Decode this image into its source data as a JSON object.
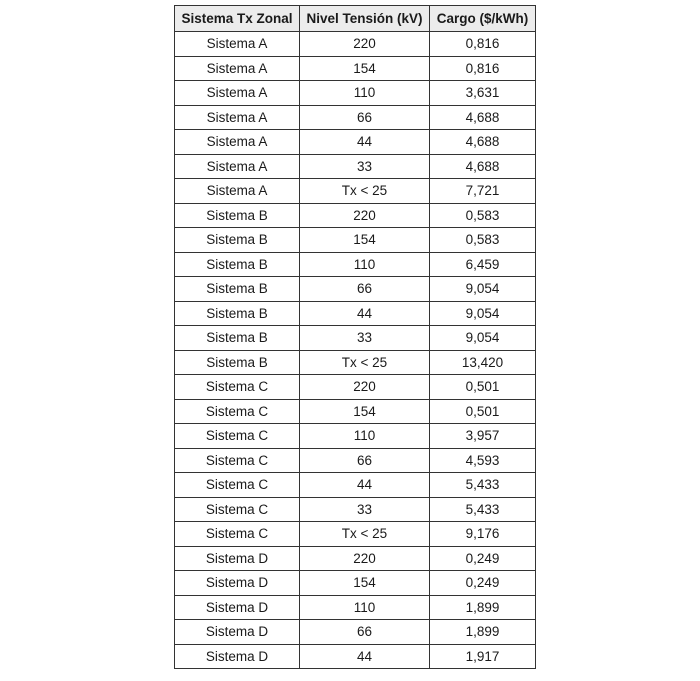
{
  "table": {
    "headers": [
      "Sistema Tx Zonal",
      "Nivel Tensión (kV)",
      "Cargo ($/kWh)"
    ],
    "rows": [
      [
        "Sistema A",
        "220",
        "0,816"
      ],
      [
        "Sistema A",
        "154",
        "0,816"
      ],
      [
        "Sistema A",
        "110",
        "3,631"
      ],
      [
        "Sistema A",
        "66",
        "4,688"
      ],
      [
        "Sistema A",
        "44",
        "4,688"
      ],
      [
        "Sistema A",
        "33",
        "4,688"
      ],
      [
        "Sistema A",
        "Tx < 25",
        "7,721"
      ],
      [
        "Sistema B",
        "220",
        "0,583"
      ],
      [
        "Sistema B",
        "154",
        "0,583"
      ],
      [
        "Sistema B",
        "110",
        "6,459"
      ],
      [
        "Sistema B",
        "66",
        "9,054"
      ],
      [
        "Sistema B",
        "44",
        "9,054"
      ],
      [
        "Sistema B",
        "33",
        "9,054"
      ],
      [
        "Sistema B",
        "Tx < 25",
        "13,420"
      ],
      [
        "Sistema C",
        "220",
        "0,501"
      ],
      [
        "Sistema C",
        "154",
        "0,501"
      ],
      [
        "Sistema C",
        "110",
        "3,957"
      ],
      [
        "Sistema C",
        "66",
        "4,593"
      ],
      [
        "Sistema C",
        "44",
        "5,433"
      ],
      [
        "Sistema C",
        "33",
        "5,433"
      ],
      [
        "Sistema C",
        "Tx < 25",
        "9,176"
      ],
      [
        "Sistema D",
        "220",
        "0,249"
      ],
      [
        "Sistema D",
        "154",
        "0,249"
      ],
      [
        "Sistema D",
        "110",
        "1,899"
      ],
      [
        "Sistema D",
        "66",
        "1,899"
      ],
      [
        "Sistema D",
        "44",
        "1,917"
      ]
    ]
  }
}
